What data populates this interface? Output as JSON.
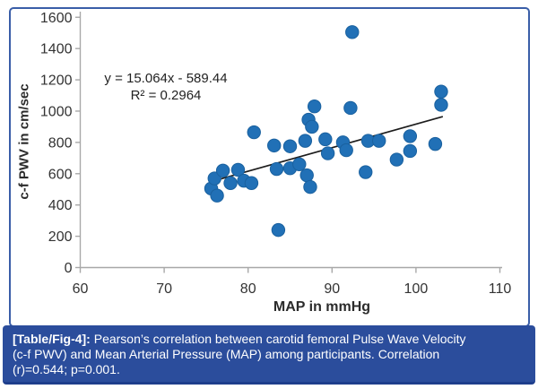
{
  "figure": {
    "caption": {
      "label": "[Table/Fig-4]:",
      "line1": " Pearson’s correlation between carotid femoral Pulse Wave Velocity",
      "line2": "(c-f PWV) and Mean Arterial Pressure (MAP) among participants. Correlation",
      "line3": "(r)=0.544; p=0.001."
    },
    "colors": {
      "border": "#3A5EA8",
      "caption_bg": "#2B4D9C",
      "marker": "#2170B6",
      "marker_edge": "#1A619F",
      "trend": "#1C1C1C",
      "axis": "#A8A8A8",
      "tick_text": "#333333"
    }
  },
  "chart_data": {
    "type": "scatter",
    "title": "",
    "xlabel": "MAP in mmHg",
    "ylabel": "c-f PWV in cm/sec",
    "xlim": [
      60,
      110
    ],
    "ylim": [
      0,
      1600
    ],
    "x_ticks": [
      60,
      70,
      80,
      90,
      100,
      110
    ],
    "y_ticks": [
      0,
      200,
      400,
      600,
      800,
      1000,
      1200,
      1400,
      1600
    ],
    "grid": false,
    "legend": "none",
    "annotations": {
      "equation": "y = 15.064x - 589.44",
      "r_squared": "R² = 0.2964"
    },
    "trendline": {
      "slope": 15.064,
      "intercept": -589.44,
      "x_range": [
        75.5,
        103.2
      ]
    },
    "series": [
      {
        "name": "participants",
        "points": [
          [
            75.6,
            505
          ],
          [
            76.0,
            570
          ],
          [
            76.3,
            460
          ],
          [
            77.0,
            620
          ],
          [
            77.9,
            540
          ],
          [
            78.8,
            625
          ],
          [
            79.5,
            555
          ],
          [
            80.4,
            540
          ],
          [
            80.7,
            865
          ],
          [
            83.1,
            780
          ],
          [
            83.4,
            630
          ],
          [
            83.6,
            240
          ],
          [
            85.0,
            775
          ],
          [
            85.0,
            635
          ],
          [
            86.1,
            660
          ],
          [
            86.8,
            810
          ],
          [
            87.0,
            590
          ],
          [
            87.4,
            515
          ],
          [
            87.2,
            945
          ],
          [
            87.6,
            900
          ],
          [
            87.9,
            1030
          ],
          [
            89.2,
            820
          ],
          [
            89.5,
            730
          ],
          [
            91.3,
            800
          ],
          [
            91.7,
            750
          ],
          [
            92.2,
            1020
          ],
          [
            92.4,
            1505
          ],
          [
            94.0,
            610
          ],
          [
            94.3,
            810
          ],
          [
            95.6,
            810
          ],
          [
            97.7,
            690
          ],
          [
            99.3,
            840
          ],
          [
            99.3,
            745
          ],
          [
            102.3,
            790
          ],
          [
            103.0,
            1125
          ],
          [
            103.0,
            1040
          ]
        ]
      }
    ]
  }
}
